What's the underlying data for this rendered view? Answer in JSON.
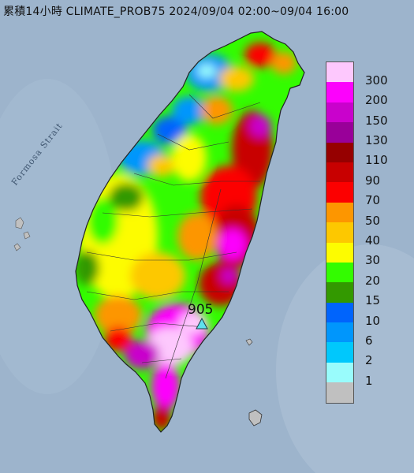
{
  "title": "累積14小時 CLIMATE_PROB75 2024/09/04 02:00~09/04 16:00",
  "strait_label": "Formosa Strait",
  "max_value_label": "905",
  "marker_icon": "triangle-station-icon",
  "legend": {
    "items": [
      {
        "label": "300",
        "color": "#fdc8fd"
      },
      {
        "label": "200",
        "color": "#fc02fc"
      },
      {
        "label": "150",
        "color": "#c902cc"
      },
      {
        "label": "130",
        "color": "#990099"
      },
      {
        "label": "110",
        "color": "#960000"
      },
      {
        "label": "90",
        "color": "#c80000"
      },
      {
        "label": "70",
        "color": "#fc0000"
      },
      {
        "label": "50",
        "color": "#fd9600"
      },
      {
        "label": "40",
        "color": "#fdc800"
      },
      {
        "label": "30",
        "color": "#fdfc00"
      },
      {
        "label": "20",
        "color": "#33fc00"
      },
      {
        "label": "15",
        "color": "#339900"
      },
      {
        "label": "10",
        "color": "#0064fc"
      },
      {
        "label": "6",
        "color": "#0096fc"
      },
      {
        "label": "2",
        "color": "#00c8fc"
      },
      {
        "label": "1",
        "color": "#99fcfc"
      },
      {
        "label": "",
        "color": "#c0c0c0"
      }
    ]
  },
  "colors": {
    "sea": "#9db4cc",
    "marker": "#5ee1ee"
  }
}
